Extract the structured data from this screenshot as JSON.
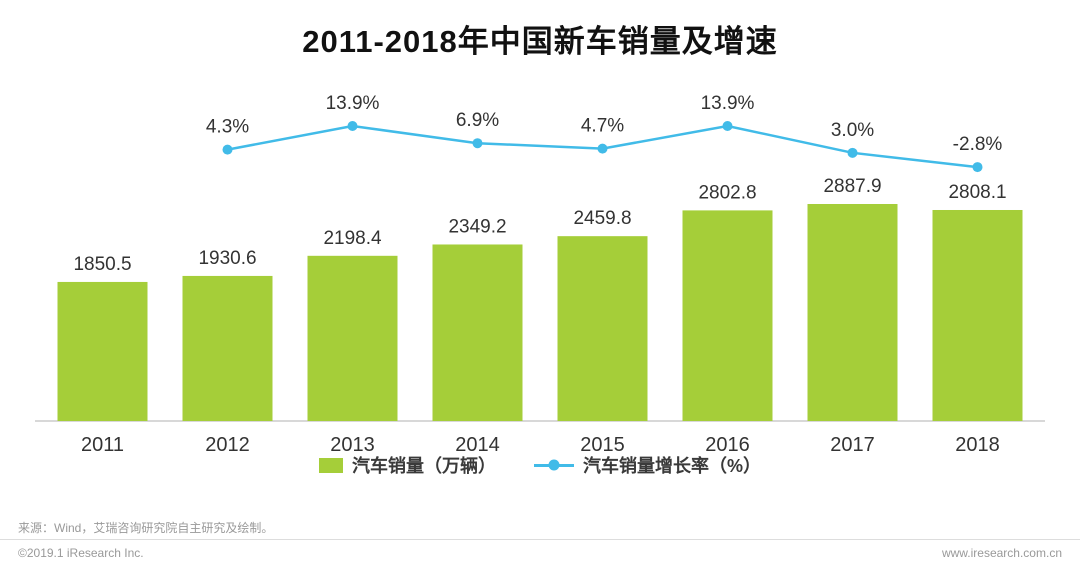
{
  "title": "2011-2018年中国新车销量及增速",
  "chart_data": {
    "type": "bar+line",
    "categories": [
      "2011",
      "2012",
      "2013",
      "2014",
      "2015",
      "2016",
      "2017",
      "2018"
    ],
    "series": [
      {
        "name": "汽车销量（万辆）",
        "type": "bar",
        "color": "#a5ce39",
        "values": [
          1850.5,
          1930.6,
          2198.4,
          2349.2,
          2459.8,
          2802.8,
          2887.9,
          2808.1
        ],
        "labels": [
          "1850.5",
          "1930.6",
          "2198.4",
          "2349.2",
          "2459.8",
          "2802.8",
          "2887.9",
          "2808.1"
        ]
      },
      {
        "name": "汽车销量增长率（%）",
        "type": "line",
        "color": "#41bbe8",
        "values": [
          null,
          4.3,
          13.9,
          6.9,
          4.7,
          13.9,
          3.0,
          -2.8
        ],
        "labels": [
          "",
          "4.3%",
          "13.9%",
          "6.9%",
          "4.7%",
          "13.9%",
          "3.0%",
          "-2.8%"
        ]
      }
    ],
    "ylim_bar": [
      0,
      3000
    ],
    "ylim_line": [
      -5,
      16
    ],
    "grid": false,
    "legend_position": "bottom",
    "value_labels": true
  },
  "legend": {
    "bar_label": "汽车销量（万辆）",
    "line_label": "汽车销量增长率（%）"
  },
  "footer": {
    "source": "来源：Wind，艾瑞咨询研究院自主研究及绘制。",
    "copyright": "©2019.1 iResearch Inc.",
    "website": "www.iresearch.com.cn"
  },
  "colors": {
    "bar": "#a5ce39",
    "line": "#41bbe8",
    "axis": "#cccccc",
    "label_text": "#333333",
    "footer_text": "#999999"
  }
}
